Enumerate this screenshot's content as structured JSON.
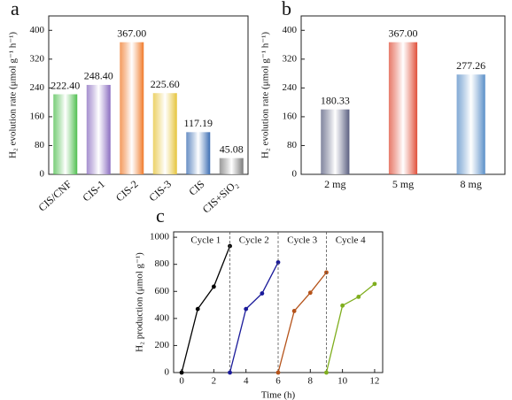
{
  "chart_data": [
    {
      "type": "bar",
      "label": "a",
      "ylabel": "H₂ evolution rate (μmol g⁻¹ h⁻¹)",
      "categories": [
        "CIS/CNF",
        "CIS-1",
        "CIS-2",
        "CIS-3",
        "CIS",
        "CIS+SiO₂"
      ],
      "values": [
        222.4,
        248.4,
        367,
        225.6,
        117.19,
        45.08
      ],
      "value_labels": [
        "222.40",
        "248.40",
        "367.00",
        "225.60",
        "117.19",
        "45.08"
      ],
      "colors": [
        "#4fbf4f",
        "#8a6cc0",
        "#f07a2a",
        "#e6c43a",
        "#3b6db3",
        "#7a7a7a"
      ],
      "ylim": [
        0,
        440
      ],
      "yticks": [
        0,
        80,
        160,
        240,
        320,
        400
      ],
      "rotate_labels": true
    },
    {
      "type": "bar",
      "label": "b",
      "ylabel": "H₂ evolution rate (μmol g⁻¹ h⁻¹)",
      "categories": [
        "2 mg",
        "5 mg",
        "8 mg"
      ],
      "values": [
        180.33,
        367,
        277.26
      ],
      "value_labels": [
        "180.33",
        "367.00",
        "277.26"
      ],
      "colors": [
        "#5a5f80",
        "#e0503a",
        "#5a8fc8"
      ],
      "ylim": [
        0,
        440
      ],
      "yticks": [
        0,
        80,
        160,
        240,
        320,
        400
      ],
      "rotate_labels": false
    },
    {
      "type": "line",
      "label": "c",
      "xlabel": "Time (h)",
      "ylabel": "H₂ production (μmol g⁻¹)",
      "series": [
        {
          "name": "Cycle 1",
          "color": "#000000",
          "x": [
            0,
            1,
            2,
            3
          ],
          "values": [
            0,
            470,
            635,
            935
          ]
        },
        {
          "name": "Cycle 2",
          "color": "#1a1a9a",
          "x": [
            3,
            4,
            5,
            6
          ],
          "values": [
            0,
            470,
            585,
            815
          ]
        },
        {
          "name": "Cycle 3",
          "color": "#b5531a",
          "x": [
            6,
            7,
            8,
            9
          ],
          "values": [
            0,
            455,
            590,
            740
          ]
        },
        {
          "name": "Cycle 4",
          "color": "#7fae1e",
          "x": [
            9,
            10,
            11,
            12
          ],
          "values": [
            0,
            495,
            560,
            655
          ]
        }
      ],
      "xlim": [
        -0.5,
        12.5
      ],
      "xticks": [
        0,
        2,
        4,
        6,
        8,
        10,
        12
      ],
      "ylim": [
        0,
        1040
      ],
      "yticks": [
        0,
        200,
        400,
        600,
        800,
        1000
      ]
    }
  ]
}
